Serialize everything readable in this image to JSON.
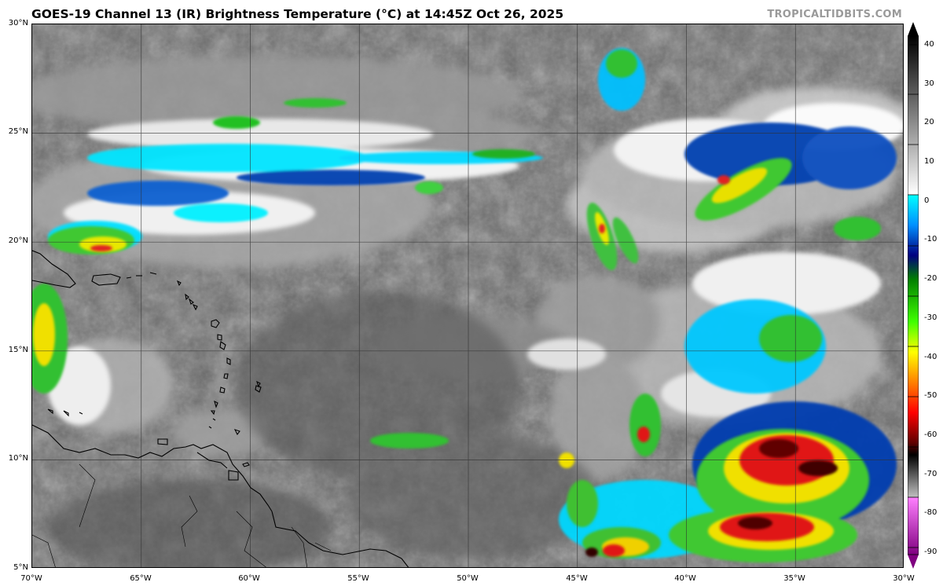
{
  "title": "GOES-19 Channel 13 (IR) Brightness Temperature (°C) at 14:45Z Oct 26, 2025",
  "credit": "TROPICALTIDBITS.COM",
  "lat_labels": [
    "30°N",
    "25°N",
    "20°N",
    "15°N",
    "10°N",
    "5°N"
  ],
  "lon_labels": [
    "70°W",
    "65°W",
    "60°W",
    "55°W",
    "50°W",
    "45°W",
    "40°W",
    "35°W",
    "30°W"
  ],
  "colorbar": {
    "labels": [
      "40",
      "30",
      "20",
      "10",
      "0",
      "-10",
      "-20",
      "-30",
      "-40",
      "-50",
      "-60",
      "-70",
      "-80",
      "-90"
    ],
    "range": [
      -95,
      45
    ]
  },
  "colors": {
    "ocean_gray": "#6e6e6e",
    "cold_cloud": "#ffffff",
    "cyan": "#00ffff",
    "green": "#00c800",
    "yellow": "#ffff00",
    "red": "#ff0000",
    "black": "#000000",
    "magenta": "#ff60ff"
  }
}
